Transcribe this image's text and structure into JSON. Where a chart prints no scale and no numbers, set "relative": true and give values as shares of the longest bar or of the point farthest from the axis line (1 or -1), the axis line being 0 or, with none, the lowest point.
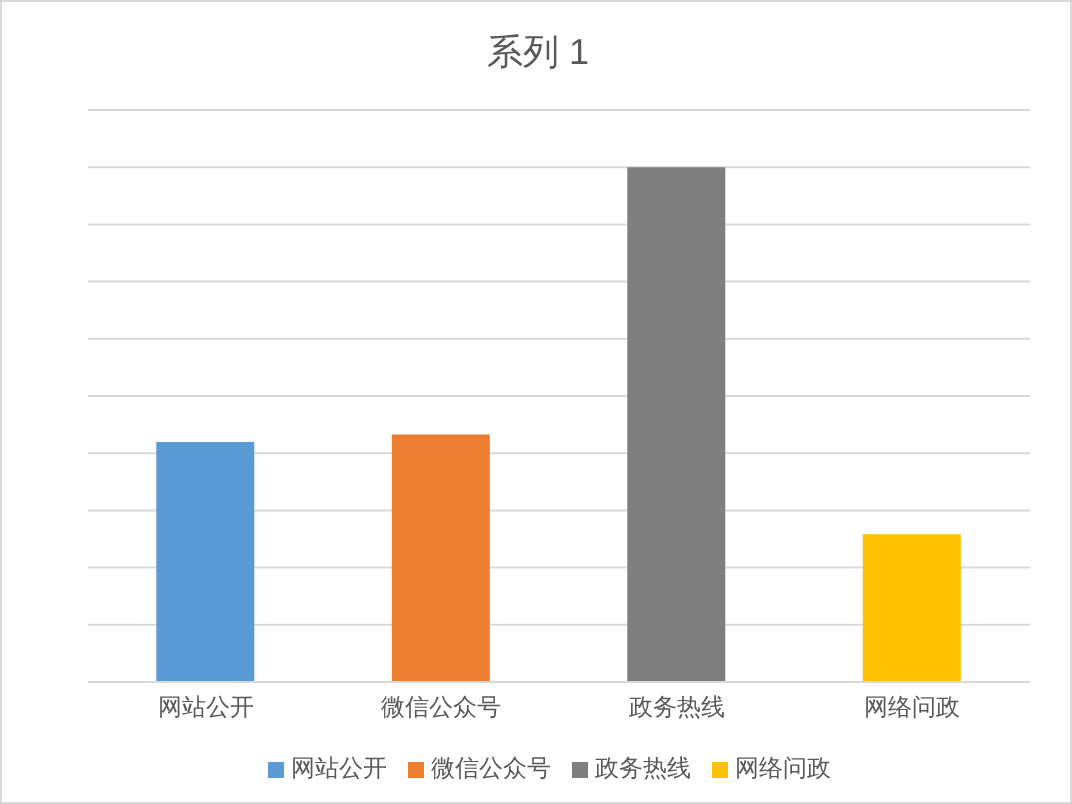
{
  "chart_data": {
    "type": "bar",
    "title": "系列 1",
    "categories": [
      "网站公开",
      "微信公众号",
      "政务热线",
      "网络问政"
    ],
    "series": [
      {
        "name": "网站公开",
        "color": "#5b9bd5",
        "values": [
          0.466,
          null,
          null,
          null
        ]
      },
      {
        "name": "微信公众号",
        "color": "#ed7d31",
        "values": [
          null,
          0.481,
          null,
          null
        ]
      },
      {
        "name": "政务热线",
        "color": "#7f7f7f",
        "values": [
          null,
          null,
          1,
          null
        ]
      },
      {
        "name": "网络问政",
        "color": "#ffc000",
        "values": [
          null,
          null,
          null,
          0.287
        ]
      }
    ],
    "stacked": true,
    "relative": true,
    "grid": true,
    "legend": "bottom"
  }
}
